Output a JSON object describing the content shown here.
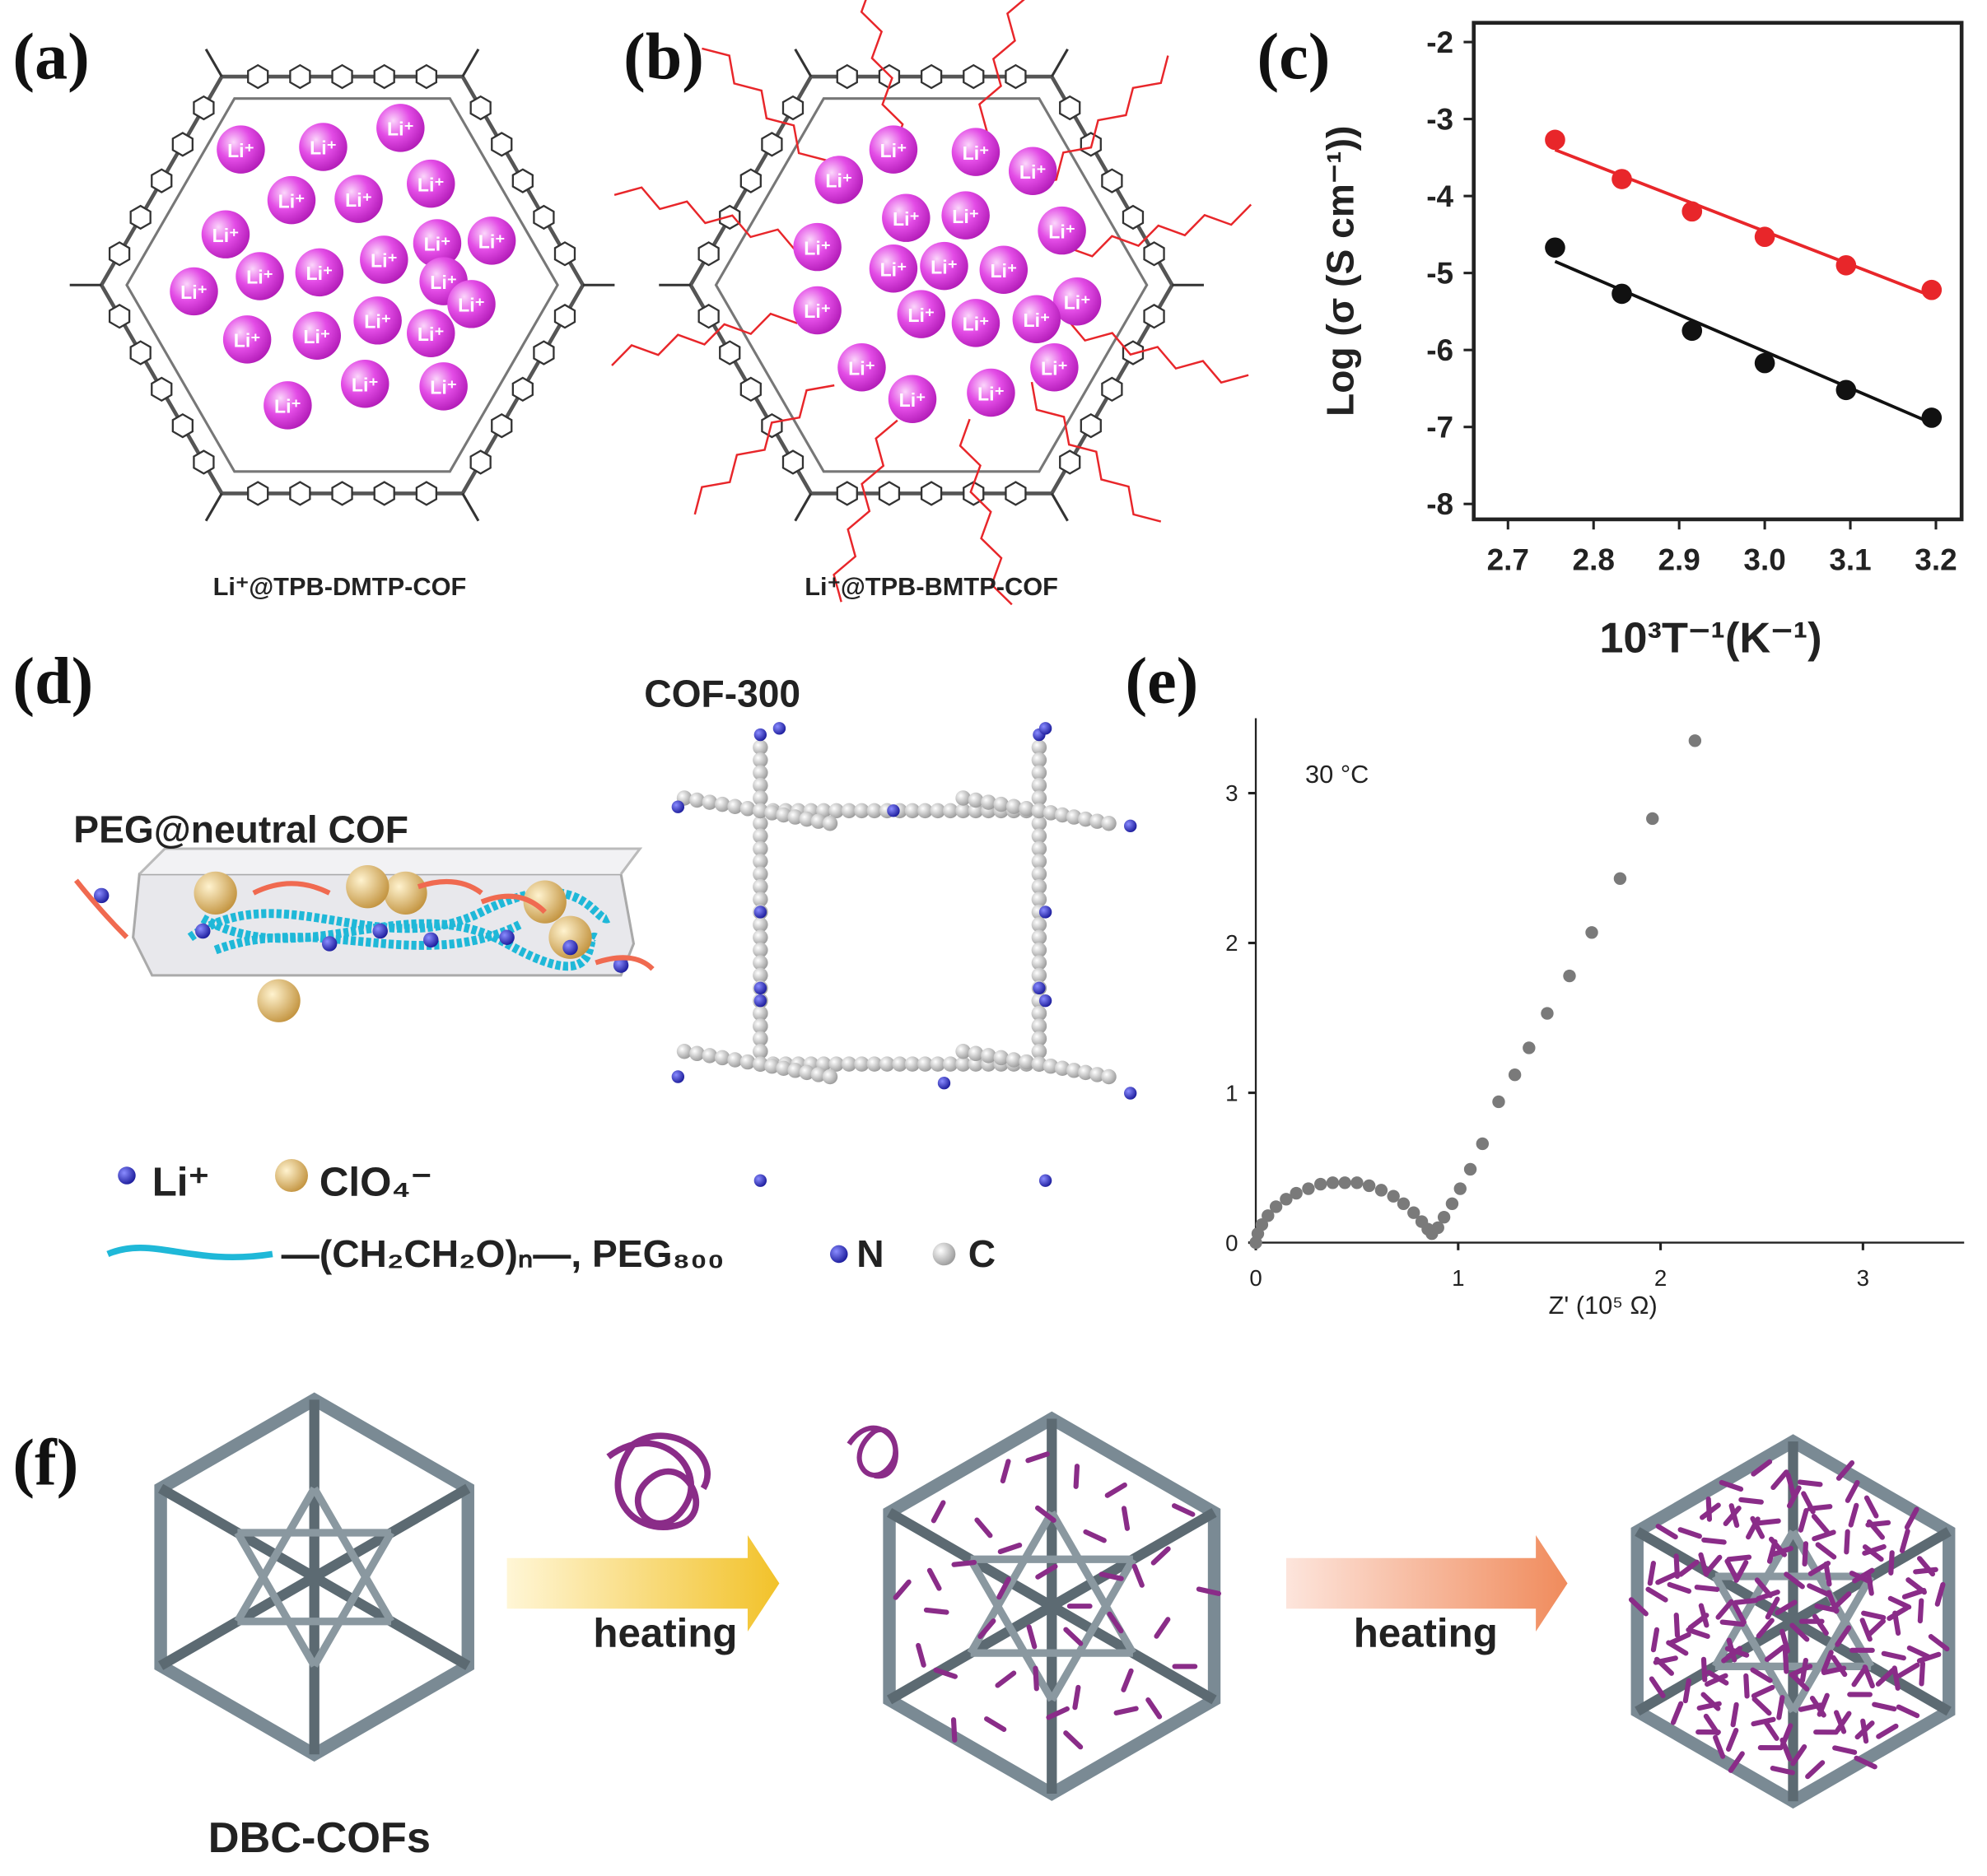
{
  "panels": {
    "a": {
      "label": "(a)",
      "ion": "Li⁺",
      "caption": "Li⁺@TPB-DMTP-COF"
    },
    "b": {
      "label": "(b)",
      "ion": "Li⁺",
      "caption": "Li⁺@TPB-BMTP-COF"
    },
    "c": {
      "label": "(c)"
    },
    "d": {
      "label": "(d)",
      "title": "COF-300",
      "channel": "PEG@neutral COF",
      "legend_li": "Li⁺",
      "legend_clo4": "ClO₄⁻",
      "legend_peg": "—(CH₂CH₂O)ₙ—, PEG₈₀₀",
      "legend_n": "N",
      "legend_c": "C"
    },
    "e": {
      "label": "(e)"
    },
    "f": {
      "label": "(f)",
      "arrow1": "heating",
      "arrow2": "heating",
      "caption": "DBC-COFs"
    }
  },
  "chart_data": [
    {
      "type": "scatter",
      "xlabel": "10³T⁻¹(K⁻¹)",
      "ylabel": "Log (σ (S cm⁻¹))",
      "xlim": [
        2.66,
        3.23
      ],
      "ylim": [
        -8.2,
        -1.75
      ],
      "xticks": [
        2.7,
        2.8,
        2.9,
        {
          "value": 3,
          "label": "3.0"
        },
        3.1,
        3.2
      ],
      "yticks": [
        -2,
        -3,
        -4,
        -5,
        -6,
        -7,
        -8
      ],
      "frame": "box",
      "series": [
        {
          "color": "#e8262a",
          "x": [
            2.755,
            2.833,
            2.915,
            3.0,
            3.095,
            3.195
          ],
          "values": [
            -3.27,
            -3.78,
            -4.2,
            -4.53,
            -4.9,
            -5.22
          ],
          "fit": {
            "x": [
              2.755,
              3.195
            ],
            "values": [
              -3.4,
              -5.3
            ]
          }
        },
        {
          "color": "#111111",
          "x": [
            2.755,
            2.833,
            2.915,
            3.0,
            3.095,
            3.195
          ],
          "values": [
            -4.67,
            -5.27,
            -5.75,
            -6.17,
            -6.52,
            -6.88
          ],
          "fit": {
            "x": [
              2.755,
              3.195
            ],
            "values": [
              -4.85,
              -6.95
            ]
          }
        }
      ]
    },
    {
      "type": "scatter",
      "xlabel": "Z' (10⁵ Ω)",
      "annotation": "30 °C",
      "xlim": [
        0,
        3.5
      ],
      "ylim": [
        0,
        3.5
      ],
      "xticks": [
        0,
        1,
        2,
        3
      ],
      "yticks": [
        0,
        1,
        2,
        3
      ],
      "frame": "axes",
      "series": [
        {
          "color": "#7a7a7a",
          "x": [
            0.0,
            0.01,
            0.03,
            0.06,
            0.1,
            0.15,
            0.2,
            0.26,
            0.32,
            0.38,
            0.44,
            0.5,
            0.56,
            0.62,
            0.68,
            0.73,
            0.78,
            0.82,
            0.85,
            0.87,
            0.9,
            0.93,
            0.97,
            1.01,
            1.06,
            1.12,
            1.2,
            1.28,
            1.35,
            1.44,
            1.55,
            1.66,
            1.8,
            1.96,
            2.17
          ],
          "values": [
            0.0,
            0.06,
            0.12,
            0.18,
            0.24,
            0.29,
            0.33,
            0.36,
            0.39,
            0.4,
            0.4,
            0.4,
            0.38,
            0.35,
            0.31,
            0.26,
            0.2,
            0.14,
            0.09,
            0.06,
            0.1,
            0.17,
            0.26,
            0.36,
            0.49,
            0.66,
            0.94,
            1.12,
            1.3,
            1.53,
            1.78,
            2.07,
            2.43,
            2.83,
            3.35
          ]
        }
      ]
    }
  ]
}
